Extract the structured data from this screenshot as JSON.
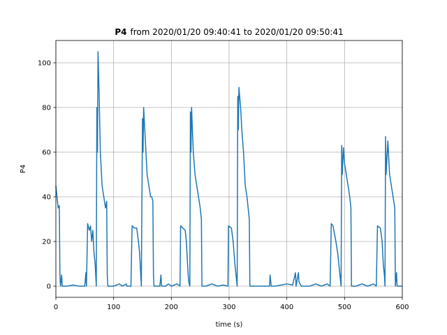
{
  "chart_data": {
    "type": "line",
    "title": {
      "bold": "P4",
      "text": "from 2020/01/20 09:40:41 to 2020/01/20 09:50:41"
    },
    "xlabel": "time (s)",
    "ylabel": "P4",
    "xlim": [
      0,
      600
    ],
    "ylim": [
      -5,
      110
    ],
    "xticks": [
      0,
      100,
      200,
      300,
      400,
      500,
      600
    ],
    "yticks": [
      0,
      20,
      40,
      60,
      80,
      100
    ],
    "grid": true,
    "series": [
      {
        "name": "P4",
        "color": "#1f77b4",
        "x": [
          0,
          2,
          4,
          6,
          7,
          8,
          10,
          11,
          20,
          30,
          40,
          50,
          52,
          53,
          55,
          58,
          60,
          62,
          64,
          66,
          68,
          69,
          70,
          71,
          72,
          73,
          75,
          77,
          80,
          83,
          86,
          88,
          89,
          90,
          100,
          110,
          115,
          122,
          123,
          130,
          132,
          136,
          140,
          143,
          145,
          147,
          148,
          150,
          151,
          152,
          154,
          156,
          158,
          161,
          164,
          166,
          168,
          169,
          170,
          180,
          182,
          183,
          190,
          195,
          200,
          210,
          215,
          216,
          220,
          224,
          226,
          228,
          230,
          232,
          233,
          234,
          235,
          238,
          241,
          244,
          247,
          250,
          252,
          253,
          260,
          270,
          280,
          290,
          298,
          299,
          304,
          307,
          310,
          312,
          314,
          315,
          316,
          317,
          320,
          322,
          325,
          328,
          331,
          333,
          335,
          336,
          350,
          370,
          371,
          373,
          380,
          400,
          410,
          415,
          416,
          420,
          421,
          425,
          440,
          450,
          460,
          470,
          475,
          477,
          480,
          485,
          488,
          490,
          492,
          494,
          495,
          496,
          498,
          500,
          503,
          506,
          509,
          511,
          512,
          520,
          530,
          540,
          550,
          555,
          557,
          562,
          565,
          567,
          569,
          570,
          571,
          572,
          575,
          578,
          581,
          584,
          587,
          588,
          590,
          591,
          600
        ],
        "values": [
          45,
          40,
          35,
          36,
          5,
          0,
          5,
          0,
          0,
          0.5,
          0,
          0,
          6,
          0,
          28,
          25,
          27,
          20,
          25,
          15,
          10,
          5,
          0,
          80,
          60,
          105,
          85,
          60,
          45,
          40,
          35,
          38,
          5,
          0,
          0,
          1,
          0,
          1,
          0,
          0,
          27,
          26,
          26,
          20,
          15,
          5,
          0,
          75,
          60,
          80,
          70,
          60,
          50,
          45,
          40,
          40,
          38,
          5,
          0,
          0,
          5,
          0,
          0,
          1,
          0,
          1,
          0,
          27,
          26,
          25,
          20,
          10,
          2,
          0,
          78,
          60,
          80,
          60,
          50,
          45,
          40,
          35,
          30,
          0,
          0,
          1,
          0,
          0.5,
          0,
          27,
          26,
          20,
          10,
          5,
          0,
          85,
          70,
          89,
          80,
          70,
          60,
          45,
          40,
          35,
          30,
          0,
          0,
          0,
          5,
          0,
          0,
          1,
          0.5,
          6,
          0,
          6,
          2,
          0,
          0,
          1,
          0,
          1,
          0,
          28,
          27,
          20,
          15,
          10,
          5,
          0,
          63,
          50,
          62,
          55,
          50,
          45,
          40,
          35,
          0,
          0,
          1,
          0,
          1,
          0,
          27,
          26,
          20,
          10,
          5,
          0,
          67,
          50,
          65,
          50,
          45,
          40,
          35,
          0,
          6,
          0,
          0
        ]
      }
    ]
  }
}
